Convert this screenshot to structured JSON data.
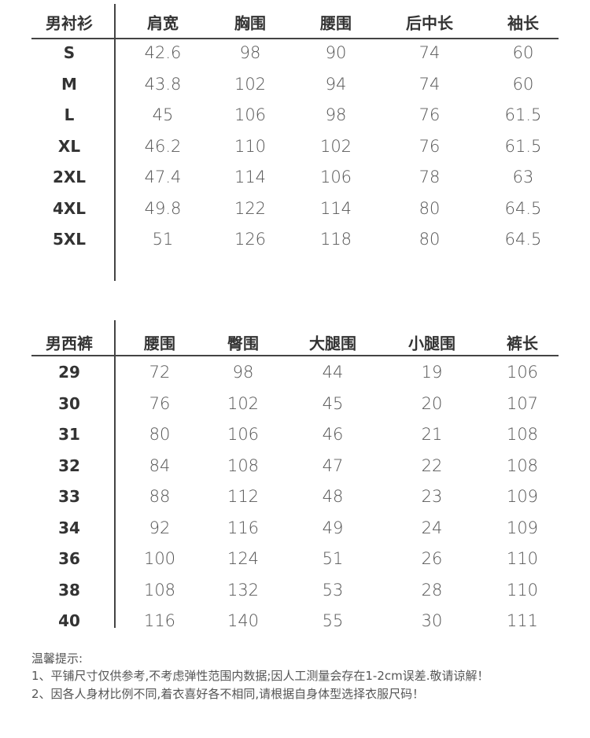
{
  "shirt": {
    "headers": [
      "男衬衫",
      "肩宽",
      "胸围",
      "腰围",
      "后中长",
      "袖长"
    ],
    "rows": [
      [
        "S",
        "42.6",
        "98",
        "90",
        "74",
        "60"
      ],
      [
        "M",
        "43.8",
        "102",
        "94",
        "74",
        "60"
      ],
      [
        "L",
        "45",
        "106",
        "98",
        "76",
        "61.5"
      ],
      [
        "XL",
        "46.2",
        "110",
        "102",
        "76",
        "61.5"
      ],
      [
        "2XL",
        "47.4",
        "114",
        "106",
        "78",
        "63"
      ],
      [
        "4XL",
        "49.8",
        "122",
        "114",
        "80",
        "64.5"
      ],
      [
        "5XL",
        "51",
        "126",
        "118",
        "80",
        "64.5"
      ]
    ]
  },
  "pants": {
    "headers": [
      "男西裤",
      "腰围",
      "臀围",
      "大腿围",
      "小腿围",
      "裤长"
    ],
    "rows": [
      [
        "29",
        "72",
        "98",
        "44",
        "19",
        "106"
      ],
      [
        "30",
        "76",
        "102",
        "45",
        "20",
        "107"
      ],
      [
        "31",
        "80",
        "106",
        "46",
        "21",
        "108"
      ],
      [
        "32",
        "84",
        "108",
        "47",
        "22",
        "108"
      ],
      [
        "33",
        "88",
        "112",
        "48",
        "23",
        "109"
      ],
      [
        "34",
        "92",
        "116",
        "49",
        "24",
        "109"
      ],
      [
        "36",
        "100",
        "124",
        "51",
        "26",
        "110"
      ],
      [
        "38",
        "108",
        "132",
        "53",
        "28",
        "110"
      ],
      [
        "40",
        "116",
        "140",
        "55",
        "30",
        "111"
      ]
    ]
  },
  "notes": {
    "title": "温馨提示:",
    "line1": "1、平铺尺寸仅供参考,不考虑弹性范围内数据;因人工测量会存在1-2cm误差.敬请谅解！",
    "line2": "2、因各人身材比例不同,着衣喜好各不相同,请根据自身体型选择衣服尺码！"
  }
}
